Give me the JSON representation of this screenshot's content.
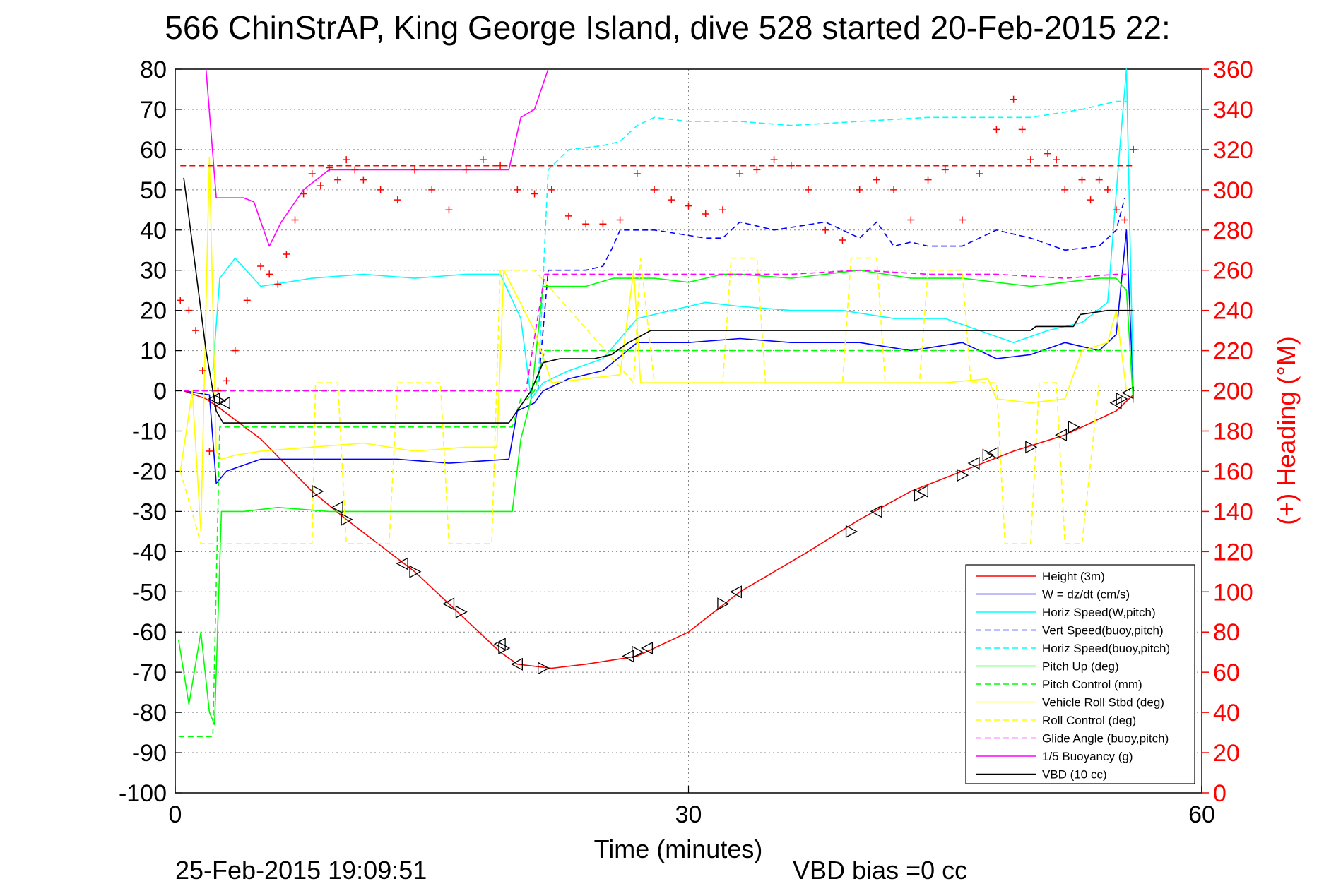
{
  "title": "566 ChinStrAP, King George Island, dive 528 started 20-Feb-2015 22:",
  "footer": {
    "timestamp": "25-Feb-2015 19:09:51",
    "vbd_bias": "VBD bias =0 cc"
  },
  "chart_data": {
    "type": "line",
    "title": "566 ChinStrAP, King George Island, dive 528 started 20-Feb-2015 22:",
    "xlabel": "Time (minutes)",
    "ylabel": "",
    "y2label": "(+) Heading (°M)",
    "xlim": [
      0,
      60
    ],
    "ylim": [
      -100,
      80
    ],
    "y2lim": [
      0,
      360
    ],
    "xticks": [
      0,
      30,
      60
    ],
    "yticks": [
      -100,
      -90,
      -80,
      -70,
      -60,
      -50,
      -40,
      -30,
      -20,
      -10,
      0,
      10,
      20,
      30,
      40,
      50,
      60,
      70,
      80
    ],
    "y2ticks": [
      0,
      20,
      40,
      60,
      80,
      100,
      120,
      140,
      160,
      180,
      200,
      220,
      240,
      260,
      280,
      300,
      320,
      340,
      360
    ],
    "grid": true,
    "legend_position": "bottom-right",
    "colors": {
      "red": "#ff0000",
      "blue": "#0000ff",
      "cyan": "#00ffff",
      "green": "#00ff00",
      "yellow": "#ffff00",
      "magenta": "#ff00ff",
      "black": "#000000",
      "grid": "#888888"
    },
    "series": [
      {
        "name": "Height (3m)",
        "color": "#ff0000",
        "dash": "solid",
        "x": [
          0.5,
          1.8,
          2.5,
          5,
          8,
          10,
          14,
          17,
          19,
          20,
          22,
          24,
          27,
          30,
          33,
          37,
          40,
          43,
          46,
          49,
          52,
          55,
          56
        ],
        "y": [
          0,
          -2,
          -4,
          -12,
          -25,
          -32,
          -45,
          -57,
          -65,
          -68,
          -69,
          -68,
          -66,
          -60,
          -50,
          -40,
          -32,
          -25,
          -20,
          -15,
          -11,
          -5,
          -1
        ]
      },
      {
        "name": "W = dz/dt (cm/s)",
        "color": "#0000ff",
        "dash": "solid",
        "x": [
          0.5,
          2,
          2.4,
          3,
          5,
          7,
          10,
          13,
          16,
          19.5,
          20,
          21,
          21.5,
          23,
          25,
          27,
          30,
          33,
          36,
          40,
          43,
          46,
          48,
          50,
          52,
          54,
          55,
          55.6,
          56
        ],
        "y": [
          0,
          -1,
          -23,
          -20,
          -17,
          -17,
          -17,
          -17,
          -18,
          -17,
          -5,
          -3,
          0,
          3,
          5,
          12,
          12,
          13,
          12,
          12,
          10,
          12,
          8,
          9,
          12,
          10,
          14,
          40,
          0
        ]
      },
      {
        "name": "Horiz Speed(W,pitch)",
        "color": "#00ffff",
        "dash": "solid",
        "x": [
          2.2,
          2.6,
          3.5,
          5,
          8,
          11,
          14,
          17,
          19,
          20.2,
          20.8,
          21.5,
          23,
          25,
          27,
          29,
          31,
          33,
          36,
          39,
          42,
          45,
          47,
          49,
          51,
          53,
          54.5,
          55.2,
          55.6,
          56
        ],
        "y": [
          5,
          28,
          33,
          26,
          28,
          29,
          28,
          29,
          29,
          18,
          -2,
          2,
          5,
          8,
          18,
          20,
          22,
          21,
          20,
          20,
          18,
          18,
          15,
          12,
          15,
          17,
          22,
          60,
          80,
          0
        ]
      },
      {
        "name": "Vert Speed(buoy,pitch)",
        "color": "#0000ff",
        "dash": "dashed",
        "x": [
          21.2,
          21.8,
          24,
          25,
          25.6,
          26,
          28,
          31,
          32,
          33,
          35,
          38,
          40,
          41,
          42,
          43,
          44,
          46,
          48,
          50,
          52,
          54,
          55,
          55.5
        ],
        "y": [
          0,
          30,
          30,
          31,
          36,
          40,
          40,
          38,
          38,
          42,
          40,
          42,
          38,
          42,
          36,
          37,
          36,
          36,
          40,
          38,
          35,
          36,
          40,
          48
        ]
      },
      {
        "name": "Horiz Speed(buoy,pitch)",
        "color": "#00ffff",
        "dash": "dashed",
        "x": [
          21.2,
          21.8,
          23,
          25,
          26,
          27,
          28,
          30,
          33,
          36,
          40,
          44,
          47,
          50,
          53,
          55,
          55.6
        ],
        "y": [
          0,
          55,
          60,
          61,
          62,
          66,
          68,
          67,
          67,
          66,
          67,
          68,
          68,
          68,
          70,
          72,
          72
        ]
      },
      {
        "name": "Pitch Up (deg)",
        "color": "#00ff00",
        "dash": "solid",
        "x": [
          0.2,
          0.8,
          1.5,
          2,
          2.3,
          2.7,
          4,
          6,
          9,
          12,
          15,
          19.7,
          20.2,
          20.8,
          21.5,
          24,
          25.6,
          26,
          28,
          30,
          32,
          33,
          36,
          40,
          43,
          46,
          48,
          50,
          52,
          54,
          55,
          55.6,
          56
        ],
        "y": [
          -62,
          -78,
          -60,
          -80,
          -83,
          -30,
          -30,
          -29,
          -30,
          -30,
          -30,
          -30,
          -12,
          -2,
          26,
          26,
          28,
          28,
          28,
          27,
          29,
          29,
          28,
          30,
          28,
          28,
          27,
          26,
          27,
          28,
          28,
          25,
          -3
        ]
      },
      {
        "name": "Pitch Control (mm)",
        "color": "#00ff00",
        "dash": "dashed",
        "x": [
          0.2,
          2,
          2.2,
          2.6,
          19.7,
          20.2,
          20.6,
          21,
          21.6,
          27,
          27.5,
          55,
          55.6
        ],
        "y": [
          -86,
          -86,
          -86,
          -9,
          -9,
          -2,
          -2,
          0,
          10,
          10,
          10,
          10,
          10
        ]
      },
      {
        "name": "Vehicle Roll Stbd (deg)",
        "color": "#ffff00",
        "dash": "solid",
        "x": [
          0.3,
          1,
          1.5,
          2,
          2.4,
          2.7,
          3.5,
          5,
          8,
          11,
          14,
          17,
          18.8,
          19.2,
          21,
          22,
          24,
          26,
          26.8,
          27.2,
          30,
          33,
          36,
          39,
          42,
          45,
          47.5,
          48,
          50,
          52,
          53,
          54.5,
          55,
          55.6
        ],
        "y": [
          -20,
          0,
          -35,
          58,
          -15,
          -17,
          -16,
          -15,
          -14,
          -13,
          -15,
          -14,
          -14,
          30,
          15,
          2,
          3,
          4,
          30,
          2,
          2,
          2,
          2,
          2,
          2,
          2,
          3,
          -2,
          -3,
          -2,
          10,
          12,
          20,
          0
        ]
      },
      {
        "name": "Roll Control (deg)",
        "color": "#ffff00",
        "dash": "dashed",
        "x": [
          0.3,
          1.5,
          2.2,
          2.5,
          8,
          8.2,
          9.5,
          10,
          12.5,
          13,
          15.5,
          16,
          18.5,
          19,
          21,
          26.8,
          27.2,
          28,
          32,
          32.5,
          34,
          34.5,
          39,
          39.5,
          41,
          41.5,
          43.5,
          44,
          46,
          46.5,
          48,
          48.5,
          50,
          50.5,
          51.5,
          52,
          53,
          54
        ],
        "y": [
          -20,
          -38,
          -38,
          -38,
          -38,
          2,
          2,
          -38,
          -38,
          2,
          2,
          -38,
          -38,
          30,
          30,
          2,
          33,
          2,
          2,
          33,
          33,
          2,
          2,
          33,
          33,
          2,
          2,
          30,
          30,
          2,
          2,
          -38,
          -38,
          2,
          2,
          -38,
          -38,
          2
        ]
      },
      {
        "name": "Glide Angle (buoy,pitch)",
        "color": "#ff00ff",
        "dash": "dashed",
        "x": [
          0.5,
          20.5,
          21.6,
          27,
          30,
          33,
          36,
          40,
          44,
          48,
          52,
          55,
          55.6
        ],
        "y": [
          0,
          0,
          29,
          29,
          29,
          29,
          29,
          30,
          29,
          29,
          28,
          29,
          29
        ]
      },
      {
        "name": "1/5 Buoyancy (g)",
        "color": "#ff00ff",
        "dash": "solid",
        "x": [
          1.8,
          2.4,
          4,
          4.6,
          5.5,
          6.2,
          7.5,
          9,
          11,
          13,
          15,
          17,
          19.5,
          20.2,
          21,
          21.8
        ],
        "y": [
          80,
          48,
          48,
          47,
          36,
          42,
          50,
          55,
          55,
          55,
          55,
          55,
          55,
          68,
          70,
          80
        ]
      },
      {
        "name": "VBD (10 cc)",
        "color": "#000000",
        "dash": "solid",
        "x": [
          0.5,
          1.2,
          1.8,
          2.4,
          2.8,
          19.5,
          20.8,
          21.5,
          22.5,
          24.5,
          25.5,
          26.5,
          27.8,
          50,
          50.3,
          52.5,
          52.9,
          54.5,
          56
        ],
        "y": [
          53,
          30,
          10,
          -5,
          -8,
          -8,
          0,
          7,
          8,
          8,
          9,
          12,
          15,
          15,
          16,
          16,
          19,
          20,
          20
        ]
      },
      {
        "name": "Heading",
        "color": "#ff0000",
        "dash": "none",
        "axis": "y2",
        "x": [
          0.3,
          0.8,
          1.2,
          1.6,
          2,
          2.5,
          3,
          3.5,
          4.2,
          5,
          5.5,
          6,
          6.5,
          7,
          7.5,
          8,
          8.5,
          9,
          9.5,
          10,
          10.5,
          11,
          12,
          13,
          14,
          15,
          16,
          17,
          18,
          19,
          20,
          21,
          22,
          23,
          24,
          25,
          26,
          27,
          28,
          29,
          30,
          31,
          32,
          33,
          34,
          35,
          36,
          37,
          38,
          39,
          40,
          41,
          42,
          43,
          44,
          45,
          46,
          47,
          48,
          49,
          49.5,
          50,
          51,
          51.5,
          52,
          53,
          53.5,
          54,
          54.5,
          55,
          55.5,
          56
        ],
        "y": [
          245,
          240,
          230,
          210,
          170,
          200,
          205,
          220,
          245,
          262,
          258,
          253,
          268,
          285,
          298,
          308,
          302,
          311,
          305,
          315,
          310,
          305,
          300,
          295,
          310,
          300,
          290,
          310,
          315,
          312,
          300,
          298,
          300,
          287,
          283,
          283,
          285,
          308,
          300,
          295,
          292,
          288,
          290,
          308,
          310,
          315,
          312,
          300,
          280,
          275,
          300,
          305,
          300,
          285,
          305,
          310,
          285,
          308,
          330,
          345,
          330,
          315,
          318,
          315,
          300,
          305,
          295,
          305,
          300,
          290,
          285,
          320
        ]
      },
      {
        "name": "Heading reference",
        "color": "#ff0000",
        "dash": "dashed",
        "axis": "y2",
        "x": [
          0.3,
          56
        ],
        "y": [
          312,
          312
        ]
      },
      {
        "name": "Apogee markers",
        "color": "#000000",
        "dash": "none",
        "marker": "triangle",
        "x": [
          2.3,
          2.6,
          2.9,
          8.3,
          9.5,
          10,
          13.3,
          14,
          16,
          16.7,
          19,
          19.2,
          20,
          21.5,
          26.5,
          27,
          27.6,
          32,
          32.8,
          39.5,
          41,
          43.5,
          43.7,
          46,
          46.7,
          47.5,
          47.8,
          50,
          51.8,
          52.5,
          55,
          55.3,
          55.7
        ],
        "y": [
          -2,
          -2.5,
          -3,
          -25,
          -29,
          -32,
          -43,
          -45,
          -53,
          -55,
          -63,
          -64,
          -68,
          -69,
          -66,
          -65,
          -64,
          -53,
          -50,
          -35,
          -30,
          -26,
          -25,
          -21,
          -18,
          -16,
          -15.5,
          -14,
          -11,
          -9,
          -3,
          -2,
          -0.5
        ]
      }
    ],
    "legend": [
      {
        "label": "Height (3m)",
        "color": "#ff0000",
        "dash": "solid"
      },
      {
        "label": "W = dz/dt (cm/s)",
        "color": "#0000ff",
        "dash": "solid"
      },
      {
        "label": "Horiz Speed(W,pitch)",
        "color": "#00ffff",
        "dash": "solid"
      },
      {
        "label": "Vert Speed(buoy,pitch)",
        "color": "#0000ff",
        "dash": "dashed"
      },
      {
        "label": "Horiz Speed(buoy,pitch)",
        "color": "#00ffff",
        "dash": "dashed"
      },
      {
        "label": "Pitch Up (deg)",
        "color": "#00ff00",
        "dash": "solid"
      },
      {
        "label": "Pitch Control (mm)",
        "color": "#00ff00",
        "dash": "dashed"
      },
      {
        "label": "Vehicle Roll Stbd (deg)",
        "color": "#ffff00",
        "dash": "solid"
      },
      {
        "label": "Roll Control (deg)",
        "color": "#ffff00",
        "dash": "dashed"
      },
      {
        "label": "Glide Angle (buoy,pitch)",
        "color": "#ff00ff",
        "dash": "dashed"
      },
      {
        "label": "1/5 Buoyancy (g)",
        "color": "#ff00ff",
        "dash": "solid"
      },
      {
        "label": "VBD (10 cc)",
        "color": "#000000",
        "dash": "solid"
      }
    ]
  }
}
